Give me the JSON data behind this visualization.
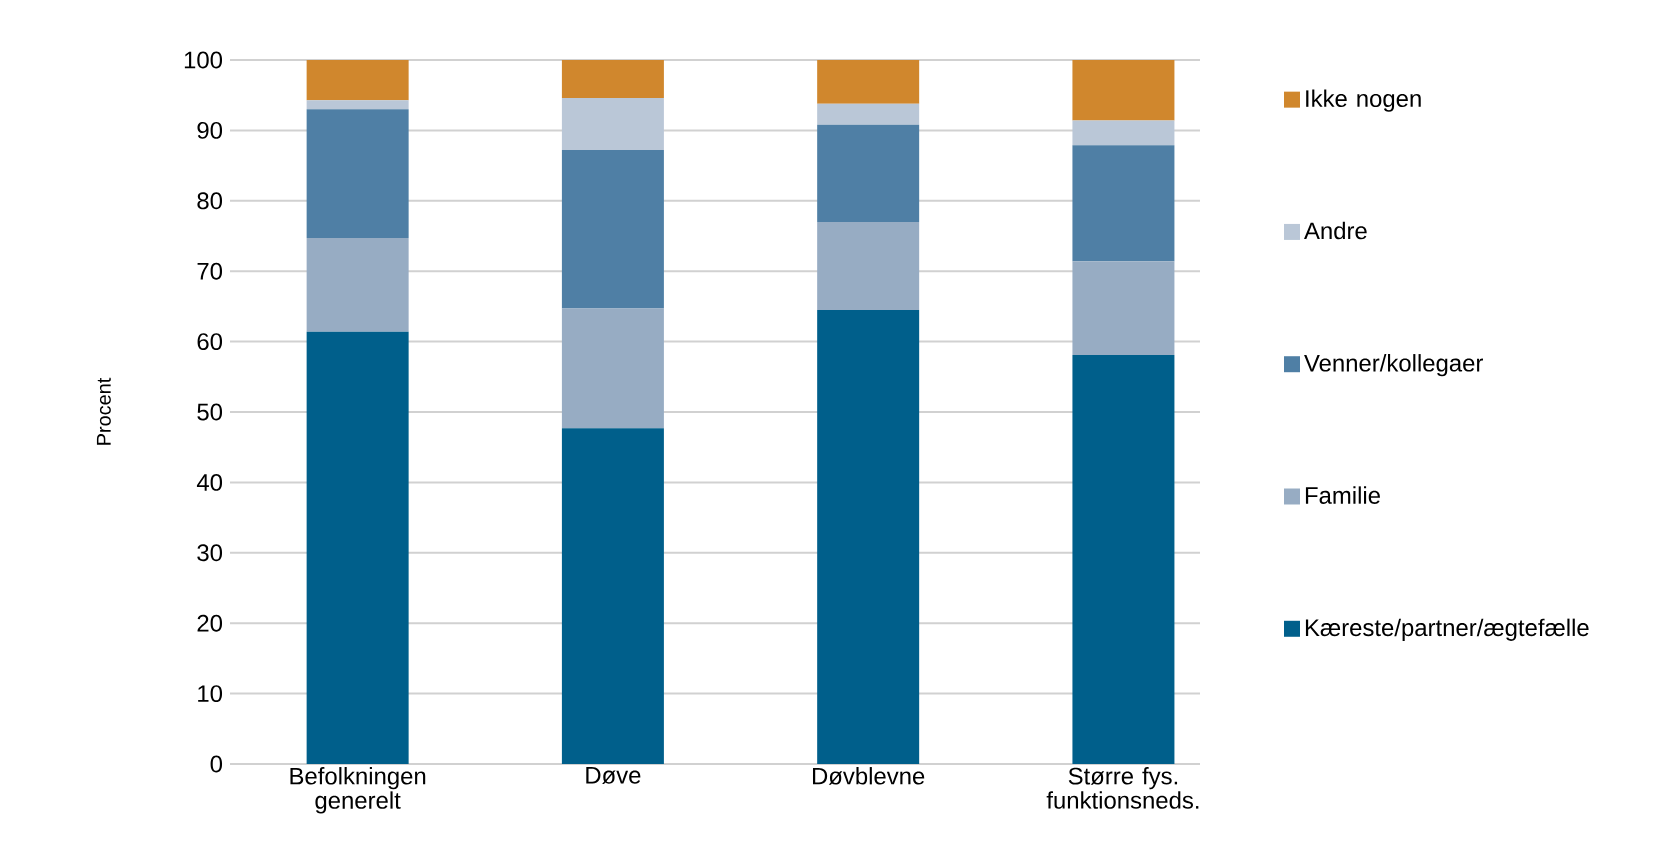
{
  "chart_data": {
    "type": "bar",
    "stacked": true,
    "ylabel": "Procent",
    "categories": [
      "Befolkningen generelt",
      "Døve",
      "Døvblevne",
      "Større fys. funktionsneds."
    ],
    "series": [
      {
        "name": "Kæreste/partner/ægtefælle",
        "color": "#005f8b",
        "values": [
          61.4,
          47.7,
          64.5,
          58.1
        ]
      },
      {
        "name": "Familie",
        "color": "#97acc3",
        "values": [
          13.3,
          17.0,
          12.5,
          13.3
        ]
      },
      {
        "name": "Venner/kollegaer",
        "color": "#4f7fa5",
        "values": [
          18.3,
          22.5,
          13.8,
          16.5
        ]
      },
      {
        "name": "Andre",
        "color": "#bac7d7",
        "values": [
          1.3,
          7.4,
          3.0,
          3.5
        ]
      },
      {
        "name": "Ikke nogen",
        "color": "#d0872d",
        "values": [
          5.7,
          5.4,
          6.2,
          8.6
        ]
      }
    ],
    "ylim": [
      0,
      100
    ],
    "yticks": [
      0,
      10,
      20,
      30,
      40,
      50,
      60,
      70,
      80,
      90,
      100
    ],
    "grid": "y",
    "legend": "right"
  }
}
